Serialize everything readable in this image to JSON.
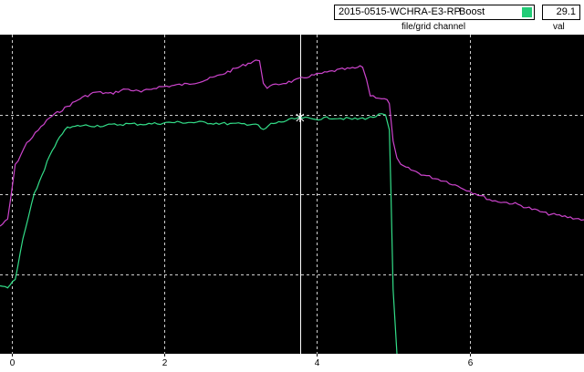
{
  "header": {
    "file_name": "2015-0515-WCHRA-E3-RP",
    "channel_name": "Boost",
    "channel_color": "#22cc77",
    "file_caption": "file/grid channel",
    "value": "29.1",
    "value_caption": "val"
  },
  "chart_data": {
    "type": "line",
    "xlim": [
      -0.15,
      7.5
    ],
    "ylim": [
      0,
      1
    ],
    "x_ticks": [
      0,
      2,
      4,
      6
    ],
    "x_tick_labels": [
      "0",
      "2",
      "4",
      "6"
    ],
    "grid": true,
    "cursor_x": 3.78,
    "colors": {
      "background": "#000000",
      "grid": "#cfcfcf",
      "cursor": "#ffffff"
    },
    "series": [
      {
        "color": "#cc44cc",
        "x": [
          -0.15,
          -0.05,
          0.05,
          0.2,
          0.35,
          0.5,
          0.7,
          0.9,
          1.1,
          1.3,
          1.5,
          1.7,
          1.9,
          2.1,
          2.3,
          2.5,
          2.7,
          2.9,
          3.1,
          3.2,
          3.25,
          3.3,
          3.35,
          3.5,
          3.7,
          3.9,
          4.1,
          4.3,
          4.5,
          4.6,
          4.65,
          4.7,
          4.85,
          4.92,
          4.95,
          5.0,
          5.05,
          5.1,
          5.2,
          5.4,
          5.7,
          6.0,
          6.3,
          6.6,
          7.0,
          7.5
        ],
        "y": [
          0.4,
          0.42,
          0.59,
          0.66,
          0.7,
          0.74,
          0.77,
          0.8,
          0.82,
          0.815,
          0.83,
          0.82,
          0.835,
          0.84,
          0.845,
          0.855,
          0.87,
          0.89,
          0.91,
          0.92,
          0.915,
          0.85,
          0.835,
          0.845,
          0.855,
          0.87,
          0.88,
          0.89,
          0.895,
          0.9,
          0.86,
          0.81,
          0.8,
          0.795,
          0.78,
          0.67,
          0.61,
          0.59,
          0.58,
          0.56,
          0.54,
          0.51,
          0.48,
          0.47,
          0.44,
          0.42
        ]
      },
      {
        "color": "#33dd88",
        "x": [
          -0.15,
          -0.05,
          0.05,
          0.15,
          0.3,
          0.5,
          0.7,
          0.9,
          1.2,
          1.5,
          1.8,
          2.1,
          2.5,
          2.9,
          3.2,
          3.3,
          3.4,
          3.6,
          3.78,
          3.95,
          4.2,
          4.5,
          4.7,
          4.85,
          4.9,
          4.95,
          4.97,
          5.0,
          5.05
        ],
        "y": [
          0.21,
          0.21,
          0.23,
          0.36,
          0.5,
          0.62,
          0.705,
          0.715,
          0.715,
          0.72,
          0.72,
          0.725,
          0.725,
          0.72,
          0.72,
          0.7,
          0.72,
          0.73,
          0.74,
          0.735,
          0.74,
          0.735,
          0.74,
          0.75,
          0.745,
          0.7,
          0.52,
          0.2,
          0.0
        ]
      }
    ]
  }
}
